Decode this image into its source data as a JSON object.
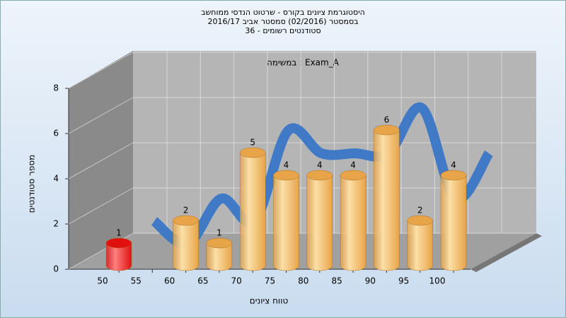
{
  "chart_data": {
    "type": "bar3d",
    "title": [
      "היסטוגרמת ציונים בקורס - שרטוט הנדסי ממוחשב",
      "בסמסטר  (02/2016)  סמסטר אביב 2016/17",
      "סטודנטים רשומים - 36"
    ],
    "annotation": "במשימה : Exam_A",
    "x_label": "טווח ציונים",
    "y_label": "מספר סטודנטים",
    "categories": [
      "50",
      "55",
      "60",
      "65",
      "70",
      "75",
      "80",
      "85",
      "90",
      "95",
      "100"
    ],
    "values": [
      1,
      0,
      2,
      1,
      5,
      4,
      4,
      4,
      6,
      2,
      4
    ],
    "colors": [
      "#e01010",
      "#e8a448",
      "#e8a448",
      "#e8a448",
      "#e8a448",
      "#e8a448",
      "#e8a448",
      "#e8a448",
      "#e8a448",
      "#e8a448",
      "#e8a448"
    ],
    "line_color": "#3a76c6",
    "ylim": [
      0,
      8
    ],
    "yticks": [
      0,
      2,
      4,
      6,
      8
    ],
    "grid": true
  }
}
